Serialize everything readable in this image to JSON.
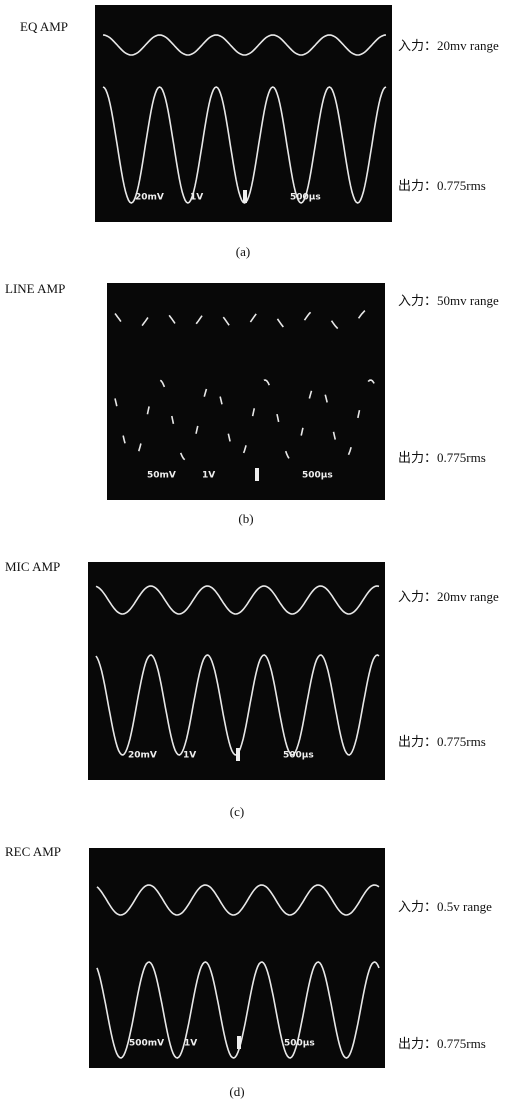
{
  "panels": [
    {
      "title": "EQ AMP",
      "input_label": "入力：20mv range",
      "output_label": "出力：0.775rms",
      "readouts": [
        "20mV",
        "1V",
        "500μs"
      ],
      "caption": "(a)"
    },
    {
      "title": "LINE AMP",
      "input_label": "入力：50mv range",
      "output_label": "出力：0.775rms",
      "readouts": [
        "50mV",
        "1V",
        "500μs"
      ],
      "caption": "(b)"
    },
    {
      "title": "MIC AMP",
      "input_label": "入力：20mv range",
      "output_label": "出力：0.775rms",
      "readouts": [
        "20mV",
        "1V",
        "500μs"
      ],
      "caption": "(c)"
    },
    {
      "title": "REC AMP",
      "input_label": "入力：0.5v range",
      "output_label": "出力：0.775rms",
      "readouts": [
        "500mV",
        "1V",
        "500μs"
      ],
      "caption": "(d)"
    }
  ]
}
